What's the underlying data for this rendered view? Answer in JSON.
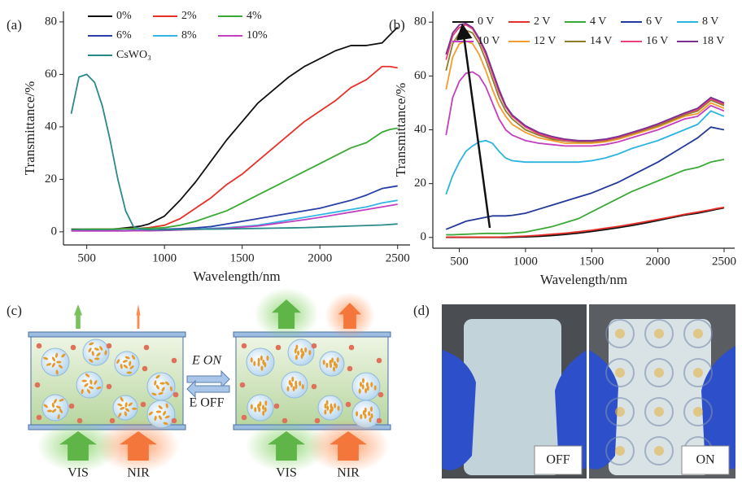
{
  "chart_data": [
    {
      "type": "line",
      "panel_label": "(a)",
      "x_label": "Wavelength/nm",
      "y_label": "Transmittance/%",
      "x": [
        400,
        450,
        500,
        550,
        600,
        650,
        700,
        750,
        800,
        850,
        900,
        1000,
        1100,
        1200,
        1300,
        1400,
        1500,
        1600,
        1700,
        1800,
        1900,
        2000,
        2100,
        2200,
        2300,
        2400,
        2450,
        2500
      ],
      "xlim": [
        350,
        2580
      ],
      "xticks": [
        500,
        1000,
        1500,
        2000,
        2500
      ],
      "ylim": [
        -5,
        84
      ],
      "yticks": [
        0,
        20,
        40,
        60,
        80
      ],
      "series": [
        {
          "name": "0%",
          "color": "#111111",
          "values": [
            1,
            1,
            1,
            1,
            1,
            1,
            1.2,
            1.5,
            1.8,
            2.2,
            3,
            6,
            12,
            19,
            27,
            35,
            42,
            49,
            54,
            59,
            63,
            66,
            69,
            71,
            71,
            72,
            75,
            78
          ]
        },
        {
          "name": "2%",
          "color": "#e8302a",
          "values": [
            0.8,
            0.8,
            0.9,
            1,
            1,
            1,
            1.1,
            1.2,
            1.3,
            1.4,
            1.6,
            2.5,
            5,
            9,
            13,
            18,
            22,
            27,
            32,
            37,
            42,
            46,
            50,
            55,
            58,
            63,
            63,
            62.5
          ]
        },
        {
          "name": "4%",
          "color": "#3aa935",
          "values": [
            0.8,
            0.9,
            1,
            1,
            1,
            1,
            1.1,
            1.2,
            1.2,
            1.3,
            1.3,
            1.6,
            2.5,
            4,
            6,
            8,
            11,
            14,
            17,
            20,
            23,
            26,
            29,
            32,
            34,
            38,
            39,
            39.5
          ]
        },
        {
          "name": "6%",
          "color": "#2b3fa8",
          "values": [
            0.5,
            0.5,
            0.5,
            0.5,
            0.5,
            0.5,
            0.5,
            0.5,
            0.6,
            0.6,
            0.7,
            1,
            1.2,
            1.5,
            2,
            3,
            4,
            5,
            6,
            7,
            8,
            9,
            10.5,
            12,
            14,
            16.5,
            17,
            17.5
          ]
        },
        {
          "name": "8%",
          "color": "#33b5e5",
          "values": [
            0.4,
            0.4,
            0.4,
            0.4,
            0.4,
            0.4,
            0.4,
            0.4,
            0.5,
            0.5,
            0.5,
            0.6,
            0.8,
            1,
            1.3,
            1.6,
            2,
            2.5,
            3.5,
            4.5,
            5.5,
            6.5,
            7.5,
            8.5,
            9.5,
            11,
            11.5,
            12
          ]
        },
        {
          "name": "10%",
          "color": "#c040c0",
          "values": [
            0.3,
            0.3,
            0.3,
            0.3,
            0.3,
            0.3,
            0.3,
            0.3,
            0.4,
            0.4,
            0.4,
            0.5,
            0.7,
            0.9,
            1.1,
            1.4,
            1.8,
            2.2,
            3,
            3.8,
            4.6,
            5.5,
            6.5,
            7.5,
            8.5,
            9.5,
            10,
            10.5
          ]
        },
        {
          "name": "CsWO₃",
          "color": "#2a8a8a",
          "values": [
            45,
            59,
            60,
            57,
            48,
            35,
            20,
            8,
            2,
            1,
            0.8,
            0.8,
            0.9,
            1,
            1,
            1.1,
            1.2,
            1.3,
            1.4,
            1.5,
            1.6,
            1.8,
            2,
            2.2,
            2.4,
            2.6,
            2.8,
            3
          ]
        }
      ]
    },
    {
      "type": "line",
      "panel_label": "(b)",
      "x_label": "Wavelength/nm",
      "y_label": "Transmittance/%",
      "x": [
        400,
        450,
        500,
        550,
        600,
        650,
        700,
        750,
        800,
        850,
        900,
        1000,
        1100,
        1200,
        1300,
        1400,
        1500,
        1600,
        1700,
        1800,
        1900,
        2000,
        2100,
        2200,
        2300,
        2400,
        2450,
        2500
      ],
      "xlim": [
        300,
        2580
      ],
      "xticks": [
        500,
        1000,
        1500,
        2000,
        2500
      ],
      "ylim": [
        -4,
        84
      ],
      "yticks": [
        0,
        20,
        40,
        60,
        80
      ],
      "series": [
        {
          "name": "0 V",
          "color": "#111111",
          "values": [
            0,
            0,
            0,
            0,
            0,
            0,
            0,
            0,
            0,
            0,
            0.1,
            0.2,
            0.4,
            0.7,
            1.1,
            1.6,
            2.2,
            2.9,
            3.6,
            4.4,
            5.3,
            6.3,
            7.3,
            8.3,
            9,
            10,
            10.5,
            11
          ]
        },
        {
          "name": "2 V",
          "color": "#e8302a",
          "values": [
            0.1,
            0.1,
            0.1,
            0.1,
            0.1,
            0.1,
            0.1,
            0.1,
            0.1,
            0.2,
            0.3,
            0.5,
            0.8,
            1.2,
            1.6,
            2.1,
            2.7,
            3.4,
            4.1,
            4.9,
            5.8,
            6.7,
            7.6,
            8.6,
            9.4,
            10.3,
            10.8,
            11.2
          ]
        },
        {
          "name": "4 V",
          "color": "#3aa935",
          "values": [
            1,
            1,
            1.1,
            1.2,
            1.3,
            1.4,
            1.5,
            1.5,
            1.5,
            1.5,
            1.6,
            2,
            3,
            4,
            5.5,
            7,
            9.5,
            12,
            14.5,
            17,
            19,
            21,
            23,
            25,
            26,
            28,
            28.5,
            29
          ]
        },
        {
          "name": "6 V",
          "color": "#23399a",
          "values": [
            3,
            4,
            5,
            6,
            6.5,
            7,
            7.5,
            8,
            8,
            8,
            8.2,
            9,
            10.5,
            12,
            13.5,
            15,
            16.5,
            18.5,
            20.5,
            23,
            25.5,
            28,
            31,
            34,
            37,
            41,
            40.5,
            40
          ]
        },
        {
          "name": "8 V",
          "color": "#2bb4e0",
          "values": [
            16,
            23,
            28,
            32,
            34,
            35.5,
            36,
            35,
            32,
            29.5,
            28.5,
            28,
            28,
            28,
            28,
            28,
            28.5,
            29.5,
            31,
            33,
            34.5,
            36,
            38,
            40,
            42,
            47,
            46,
            45
          ]
        },
        {
          "name": "10 V",
          "color": "#c43fbf",
          "values": [
            38,
            52,
            58,
            61,
            61.5,
            60,
            56,
            50,
            44,
            40,
            38,
            36,
            35,
            34.5,
            34,
            34,
            34,
            34.5,
            35.5,
            37,
            38.5,
            40,
            42,
            44,
            45,
            49,
            48,
            47
          ]
        },
        {
          "name": "12 V",
          "color": "#f39c2b",
          "values": [
            55,
            67,
            72,
            73,
            72,
            68,
            62,
            55,
            49,
            45,
            42,
            39,
            37,
            36,
            35,
            35,
            35,
            35.5,
            36.5,
            38,
            39.5,
            41,
            43,
            45,
            46,
            50,
            49,
            48
          ]
        },
        {
          "name": "14 V",
          "color": "#8b7d2a",
          "values": [
            62,
            72,
            76,
            77,
            76,
            72,
            66,
            59,
            52,
            47,
            44,
            40,
            38,
            36.5,
            35.8,
            35.5,
            35.5,
            36,
            37,
            38.5,
            40,
            41.5,
            43.5,
            45.5,
            47,
            51,
            50,
            49
          ]
        },
        {
          "name": "16 V",
          "color": "#e8417a",
          "values": [
            66,
            75,
            78,
            79,
            77.5,
            73.5,
            68,
            61,
            54,
            48.5,
            45,
            41,
            38.5,
            37,
            36,
            35.8,
            35.8,
            36.2,
            37.2,
            38.8,
            40.3,
            42,
            44,
            46,
            47.5,
            51.5,
            50.5,
            49.5
          ]
        },
        {
          "name": "18 V",
          "color": "#7b2f8f",
          "values": [
            68,
            76,
            79,
            79.5,
            78,
            74,
            69,
            62,
            55,
            49,
            45.5,
            41.5,
            39,
            37.5,
            36.5,
            36,
            36,
            36.5,
            37.5,
            39,
            40.5,
            42.2,
            44.2,
            46.2,
            48,
            52,
            51,
            50
          ]
        }
      ]
    }
  ],
  "diagram": {
    "panel_label": "(c)",
    "e_on": "E ON",
    "e_off": "E OFF",
    "vis_left": "VIS",
    "nir_left": "NIR",
    "vis_right": "VIS",
    "nir_right": "NIR"
  },
  "photo": {
    "panel_label": "(d)",
    "off": "OFF",
    "on": "ON"
  }
}
